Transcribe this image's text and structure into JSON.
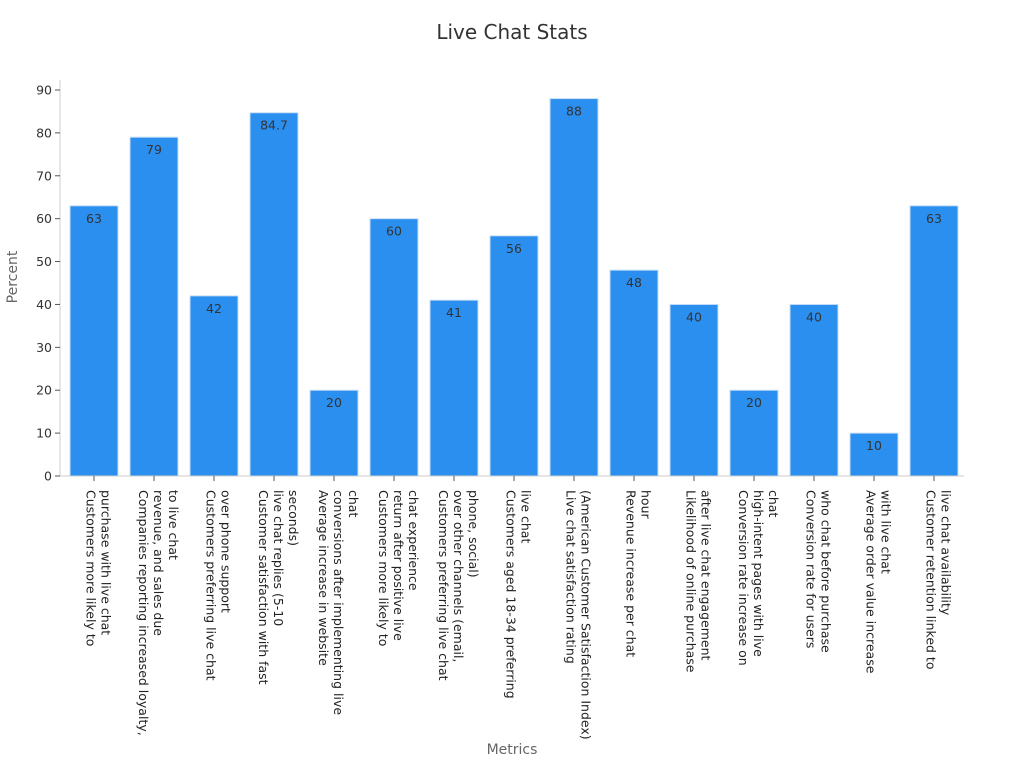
{
  "chart_data": {
    "type": "bar",
    "title": "Live Chat Stats",
    "xlabel": "Metrics",
    "ylabel": "Percent",
    "ylim": [
      0,
      90
    ],
    "yticks": [
      0,
      10,
      20,
      30,
      40,
      50,
      60,
      70,
      80,
      90
    ],
    "grid": false,
    "bar_color": "#2b8ff0",
    "categories": [
      "Customers more likely to purchase with live chat",
      "Companies reporting increased loyalty, revenue, and sales due to live chat",
      "Customers preferring live chat over phone support",
      "Customer satisfaction with fast live chat replies (5-10 seconds)",
      "Average increase in website conversions after implementing live chat",
      "Customers more likely to return after positive live chat experience",
      "Customers preferring live chat over other channels (email, phone, social)",
      "Customers aged 18-34 preferring live chat",
      "Live chat satisfaction rating (American Customer Satisfaction Index)",
      "Revenue increase per chat hour",
      "Likelihood of online purchase after live chat engagement",
      "Conversion rate increase on high-intent pages with live chat",
      "Conversion rate for users who chat before purchase",
      "Average order value increase with live chat",
      "Customer retention linked to live chat availability"
    ],
    "category_lines": [
      [
        "Customers more likely to",
        "purchase with live chat"
      ],
      [
        "Companies reporting increased loyalty,",
        "revenue, and sales due",
        "to live chat"
      ],
      [
        "Customers preferring live chat",
        "over phone support"
      ],
      [
        "Customer satisfaction with fast",
        "live chat replies (5-10",
        "seconds)"
      ],
      [
        "Average increase in website",
        "conversions after implementing live",
        "chat"
      ],
      [
        "Customers more likely to",
        "return after positive live",
        "chat experience"
      ],
      [
        "Customers preferring live chat",
        "over other channels (email,",
        "phone, social)"
      ],
      [
        "Customers aged 18-34 preferring",
        "live chat"
      ],
      [
        "Live chat satisfaction rating",
        "(American Customer Satisfaction Index)"
      ],
      [
        "Revenue increase per chat",
        "hour"
      ],
      [
        "Likelihood of online purchase",
        "after live chat engagement"
      ],
      [
        "Conversion rate increase on",
        "high-intent pages with live",
        "chat"
      ],
      [
        "Conversion rate for users",
        "who chat before purchase"
      ],
      [
        "Average order value increase",
        "with live chat"
      ],
      [
        "Customer retention linked to",
        "live chat availability"
      ]
    ],
    "values": [
      63,
      79,
      42,
      84.7,
      20,
      60,
      41,
      56,
      88,
      48,
      40,
      20,
      40,
      10,
      63
    ],
    "data_labels": [
      "63",
      "79",
      "42",
      "84.7",
      "20",
      "60",
      "41",
      "56",
      "88",
      "48",
      "40",
      "20",
      "40",
      "10",
      "63"
    ]
  }
}
